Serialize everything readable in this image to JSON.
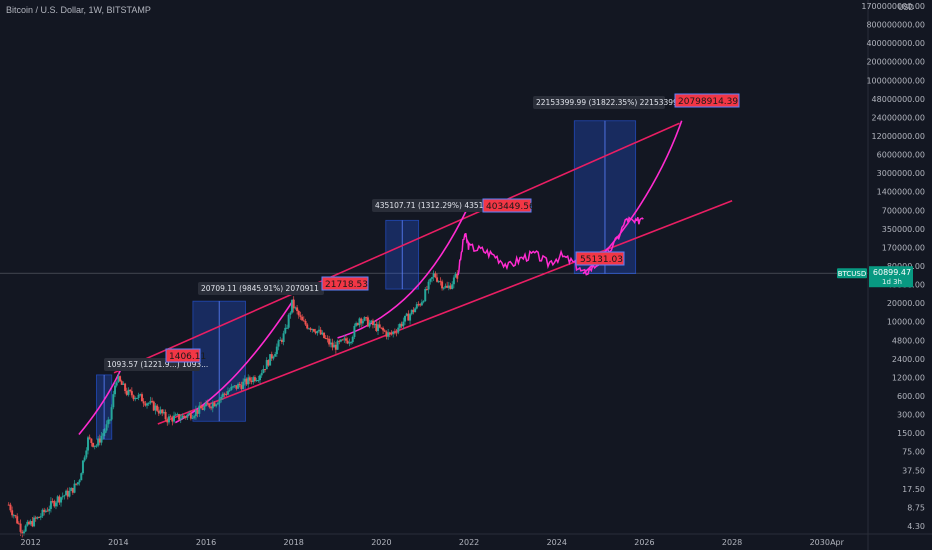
{
  "header": {
    "symbol_title": "Bitcoin / U.S. Dollar, 1W, BITSTAMP"
  },
  "price_axis": {
    "currency": "USD",
    "ticks": [
      "1700000000.00",
      "800000000.00",
      "400000000.00",
      "200000000.00",
      "100000000.00",
      "48000000.00",
      "24000000.00",
      "12000000.00",
      "6000000.00",
      "3000000.00",
      "1400000.00",
      "700000.00",
      "350000.00",
      "170000.00",
      "80000.00",
      "40000.00",
      "20000.00",
      "10000.00",
      "4800.00",
      "2400.00",
      "1200.00",
      "600.00",
      "300.00",
      "150.00",
      "75.00",
      "37.50",
      "17.50",
      "8.75",
      "4.30"
    ]
  },
  "time_axis": {
    "ticks": [
      "2012",
      "2014",
      "2016",
      "2018",
      "2020",
      "2022",
      "2024",
      "2026",
      "2028",
      "2030",
      "Apr"
    ]
  },
  "current_price": {
    "symbol": "BTCUSD",
    "price": "60899.47",
    "countdown": "1d 3h"
  },
  "colors": {
    "background": "#131722",
    "pink": "#e91e63",
    "magenta": "#ff2bd0",
    "label_red": "#f23645",
    "box_blue": "#2962ff",
    "up": "#26a69a",
    "down": "#ef5350",
    "tag": "#089981"
  },
  "annotations": {
    "cycles": [
      {
        "range_text": "1093.57 (1221.9...) 1093...",
        "target": "1406.11"
      },
      {
        "range_text": "20709.11 (9845.91%) 2070911",
        "target": "21718.53"
      },
      {
        "range_text": "435107.71 (1312.29%) 43510771",
        "target": "403449.56"
      },
      {
        "range_text": "22153399.99 (31822.35%) 2215339999",
        "target": "20798914.39"
      }
    ],
    "support_label": "55131.03"
  },
  "chart_data": {
    "type": "candlestick",
    "title": "Bitcoin / U.S. Dollar, 1W, BITSTAMP",
    "x_unit": "year",
    "y_scale": "log",
    "y_unit": "USD",
    "ylim": [
      3,
      2000000000
    ],
    "xlim": [
      2011.3,
      2031.1
    ],
    "price_path": [
      [
        2011.5,
        8
      ],
      [
        2011.8,
        3
      ],
      [
        2012.2,
        5
      ],
      [
        2012.6,
        10
      ],
      [
        2012.9,
        13
      ],
      [
        2013.1,
        20
      ],
      [
        2013.3,
        100
      ],
      [
        2013.5,
        80
      ],
      [
        2013.8,
        200
      ],
      [
        2013.95,
        1100
      ],
      [
        2014.2,
        600
      ],
      [
        2014.5,
        500
      ],
      [
        2014.9,
        320
      ],
      [
        2015.1,
        220
      ],
      [
        2015.5,
        240
      ],
      [
        2015.8,
        300
      ],
      [
        2016.2,
        420
      ],
      [
        2016.5,
        650
      ],
      [
        2016.9,
        900
      ],
      [
        2017.2,
        1200
      ],
      [
        2017.5,
        2500
      ],
      [
        2017.8,
        6000
      ],
      [
        2017.96,
        19000
      ],
      [
        2018.2,
        9000
      ],
      [
        2018.5,
        7000
      ],
      [
        2018.9,
        3500
      ],
      [
        2019.3,
        5000
      ],
      [
        2019.5,
        11000
      ],
      [
        2019.9,
        7500
      ],
      [
        2020.2,
        5500
      ],
      [
        2020.5,
        9500
      ],
      [
        2020.9,
        20000
      ],
      [
        2021.2,
        58000
      ],
      [
        2021.5,
        33000
      ],
      [
        2021.75,
        60000
      ]
    ],
    "projection_path": [
      [
        2021.75,
        60000
      ],
      [
        2021.9,
        280000
      ],
      [
        2022.0,
        170000
      ],
      [
        2022.3,
        150000
      ],
      [
        2022.6,
        120000
      ],
      [
        2022.9,
        80000
      ],
      [
        2023.2,
        110000
      ],
      [
        2023.5,
        130000
      ],
      [
        2023.8,
        90000
      ],
      [
        2024.1,
        120000
      ],
      [
        2024.4,
        90000
      ],
      [
        2024.6,
        60000
      ],
      [
        2024.9,
        85000
      ],
      [
        2025.3,
        180000
      ],
      [
        2025.6,
        500000
      ],
      [
        2025.8,
        420000
      ],
      [
        2026.0,
        600000
      ]
    ],
    "cycle_boxes": [
      {
        "x0": 2013.5,
        "x1": 2013.85,
        "y0": 100,
        "y1": 1200
      },
      {
        "x0": 2015.7,
        "x1": 2016.9,
        "y0": 200,
        "y1": 20700
      },
      {
        "x0": 2020.1,
        "x1": 2020.85,
        "y0": 33000,
        "y1": 470000
      },
      {
        "x0": 2024.4,
        "x1": 2025.8,
        "y0": 60000,
        "y1": 22000000
      }
    ],
    "trend_lines": [
      {
        "name": "upper-channel",
        "from": [
          2013.9,
          1300
        ],
        "to": [
          2026.8,
          20000000
        ]
      },
      {
        "name": "lower-channel",
        "from": [
          2014.9,
          180
        ],
        "to": [
          2028.0,
          1000000
        ]
      }
    ],
    "arcs": [
      [
        [
          2013.1,
          120
        ],
        [
          2013.55,
          300
        ],
        [
          2013.85,
          700
        ],
        [
          2014.05,
          1450
        ]
      ],
      [
        [
          2015.3,
          190
        ],
        [
          2016.3,
          450
        ],
        [
          2017.2,
          2800
        ],
        [
          2018.0,
          22000
        ]
      ],
      [
        [
          2019.0,
          5000
        ],
        [
          2020.3,
          10000
        ],
        [
          2021.2,
          50000
        ],
        [
          2022.0,
          850000
        ]
      ],
      [
        [
          2024.6,
          60000
        ],
        [
          2025.5,
          220000
        ],
        [
          2026.4,
          2500000
        ],
        [
          2026.85,
          22000000
        ]
      ]
    ],
    "current_price": 60899.47
  }
}
